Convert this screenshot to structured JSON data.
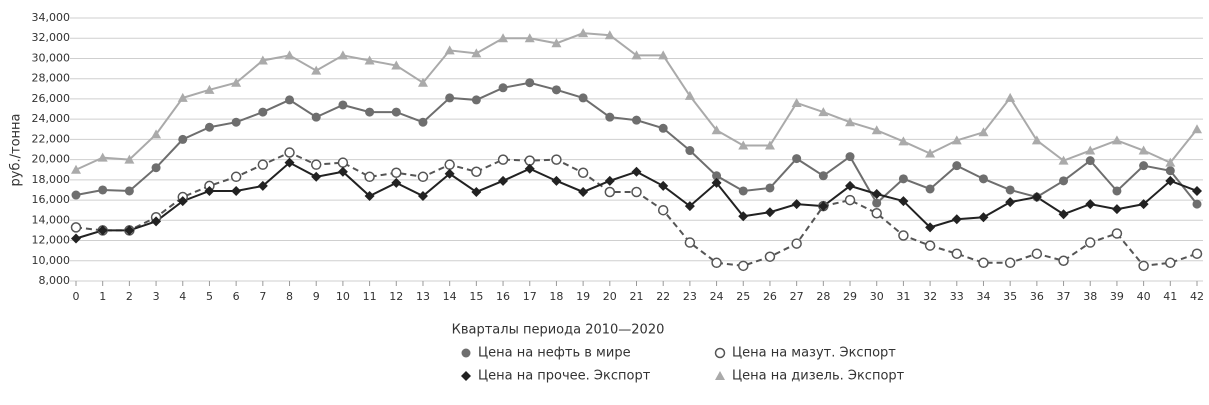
{
  "chart_data": {
    "type": "line",
    "y_label": "руб./тонна",
    "x_label": "Кварталы периода 2010—2020",
    "x": [
      0,
      1,
      2,
      3,
      4,
      5,
      6,
      7,
      8,
      9,
      10,
      11,
      12,
      13,
      14,
      15,
      16,
      17,
      18,
      19,
      20,
      21,
      22,
      23,
      24,
      25,
      26,
      27,
      28,
      29,
      30,
      31,
      32,
      33,
      34,
      35,
      36,
      37,
      38,
      39,
      40,
      41,
      42
    ],
    "xlim": [
      0,
      42
    ],
    "ylim": [
      8000,
      34000
    ],
    "yticks": [
      {
        "value": 8000,
        "label": "8,000"
      },
      {
        "value": 10000,
        "label": "10,000"
      },
      {
        "value": 12000,
        "label": "12,000"
      },
      {
        "value": 14000,
        "label": "14,000"
      },
      {
        "value": 16000,
        "label": "16,000"
      },
      {
        "value": 18000,
        "label": "18,000"
      },
      {
        "value": 20000,
        "label": "20,000"
      },
      {
        "value": 22000,
        "label": "22,000"
      },
      {
        "value": 24000,
        "label": "24,000"
      },
      {
        "value": 26000,
        "label": "26,000"
      },
      {
        "value": 28000,
        "label": "28,000"
      },
      {
        "value": 30000,
        "label": "30,000"
      },
      {
        "value": 32000,
        "label": "32,000"
      },
      {
        "value": 34000,
        "label": "34,000"
      }
    ],
    "grid": true,
    "series": [
      {
        "name": "Цена на нефть в мире",
        "color": "#6e6e6e",
        "marker": "circle",
        "dashed": false,
        "values": [
          16500,
          17000,
          16900,
          19200,
          22000,
          23200,
          23700,
          24700,
          25900,
          24200,
          25400,
          24700,
          24700,
          23700,
          26100,
          25900,
          27100,
          27600,
          26900,
          26100,
          24200,
          23900,
          23100,
          20900,
          18400,
          16900,
          17200,
          20100,
          18400,
          20300,
          15700,
          18100,
          17100,
          19400,
          18100,
          17000,
          16300,
          17900,
          19900,
          16900,
          19400,
          18900,
          15600
        ]
      },
      {
        "name": "Цена на мазут. Экспорт",
        "color": "#555555",
        "marker": "open-circle",
        "dashed": true,
        "values": [
          13300,
          13000,
          13000,
          14300,
          16300,
          17400,
          18300,
          19500,
          20700,
          19500,
          19700,
          18300,
          18700,
          18300,
          19500,
          18800,
          20000,
          19900,
          20000,
          18700,
          16800,
          16800,
          15000,
          11800,
          9800,
          9500,
          10400,
          11700,
          15400,
          16000,
          14700,
          12500,
          11500,
          10700,
          9800,
          9800,
          10700,
          10000,
          11800,
          12700,
          9500,
          9800,
          10700
        ]
      },
      {
        "name": "Цена на прочее. Экспорт",
        "color": "#222222",
        "marker": "diamond",
        "dashed": false,
        "values": [
          12200,
          13000,
          13000,
          13900,
          15900,
          16900,
          16900,
          17400,
          19700,
          18300,
          18800,
          16400,
          17700,
          16400,
          18600,
          16800,
          17900,
          19100,
          17900,
          16800,
          17900,
          18800,
          17400,
          15400,
          17700,
          14400,
          14800,
          15600,
          15400,
          17400,
          16600,
          15900,
          13300,
          14100,
          14300,
          15800,
          16300,
          14600,
          15600,
          15100,
          15600,
          17900,
          16900
        ]
      },
      {
        "name": "Цена на дизель. Экспорт",
        "color": "#aaaaaa",
        "marker": "triangle",
        "dashed": false,
        "values": [
          19000,
          20200,
          20000,
          22500,
          26100,
          26900,
          27600,
          29800,
          30300,
          28800,
          30300,
          29800,
          29300,
          27600,
          30800,
          30500,
          32000,
          32000,
          31500,
          32500,
          32300,
          30300,
          30300,
          26300,
          22900,
          21400,
          21400,
          25600,
          24700,
          23700,
          22900,
          21800,
          20600,
          21900,
          22700,
          26100,
          21900,
          19900,
          20900,
          21900,
          20900,
          19700,
          23000
        ]
      }
    ]
  }
}
